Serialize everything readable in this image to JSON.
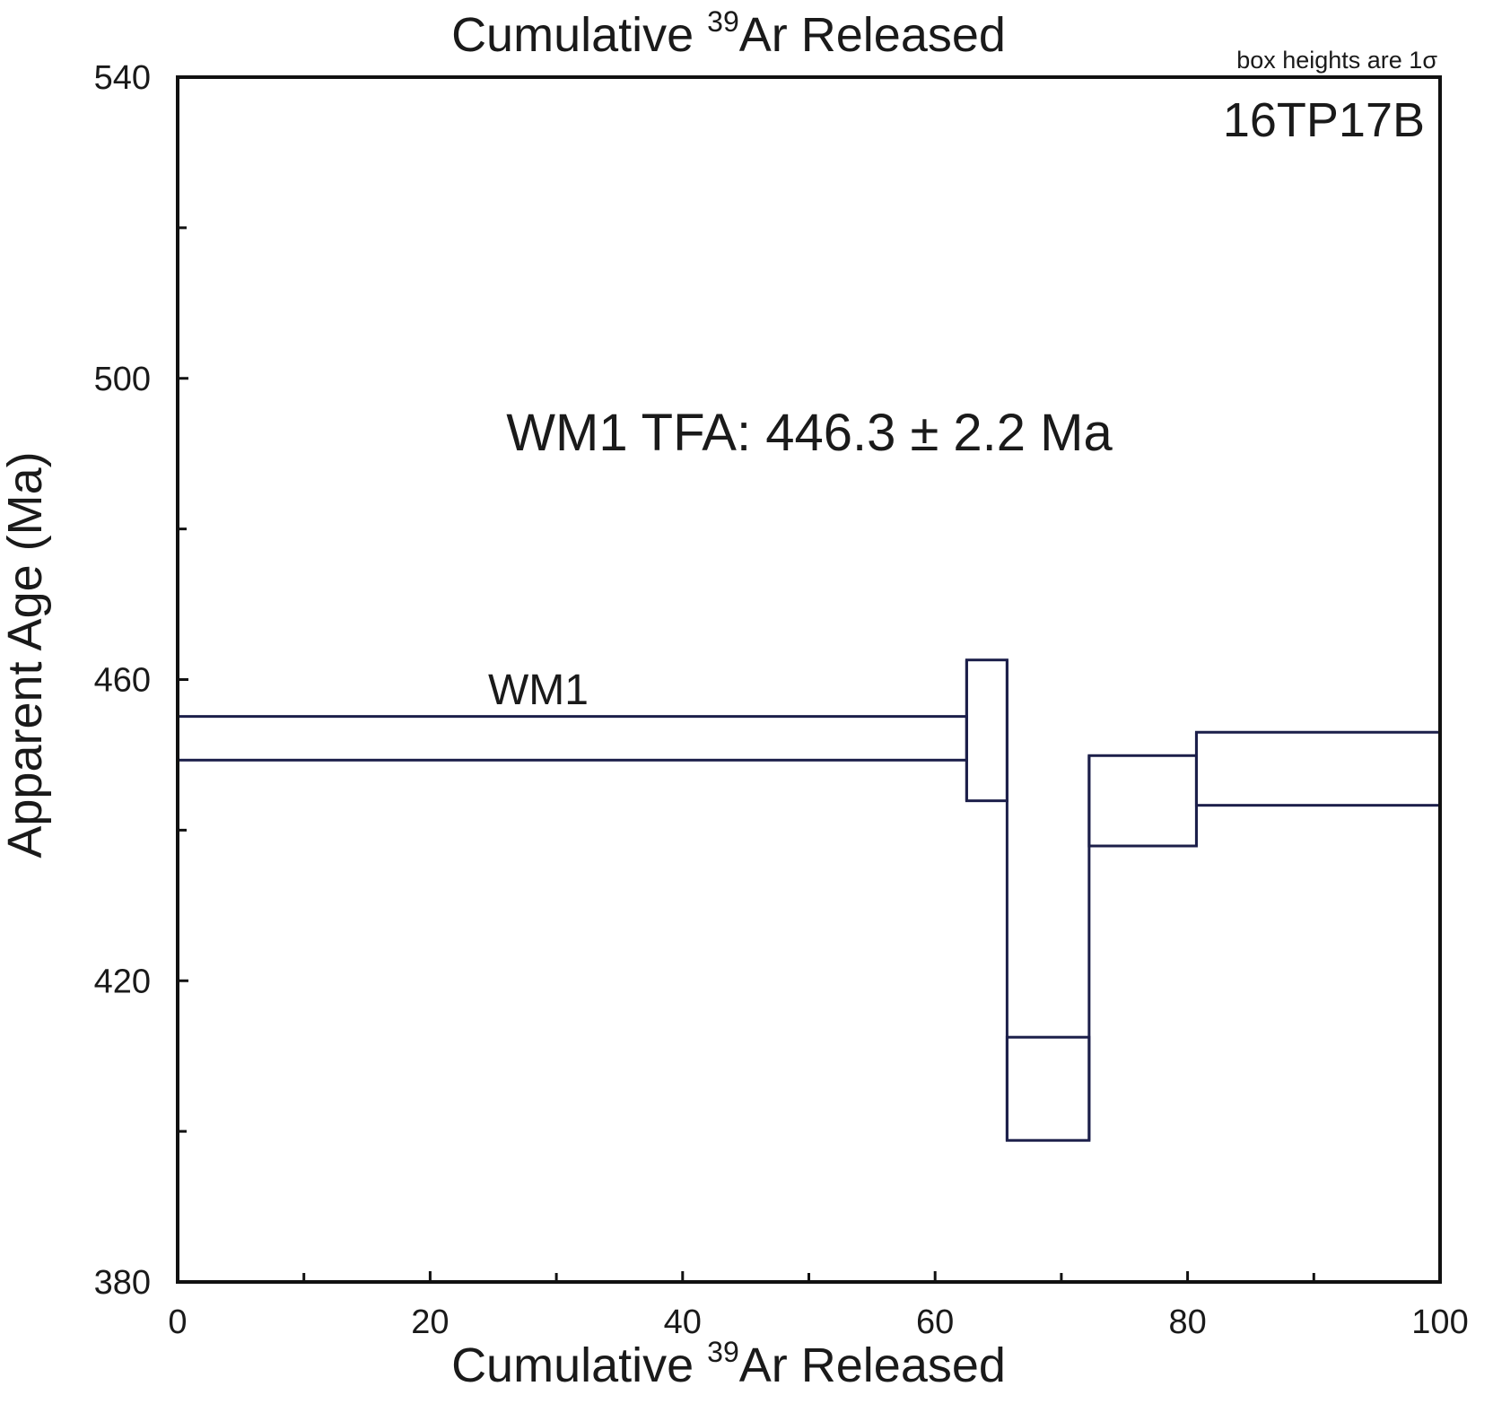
{
  "chart_data": {
    "type": "step-heating age spectrum",
    "title": [
      "Cumulative ",
      "39",
      "Ar Released"
    ],
    "xlabel": [
      "Cumulative ",
      "39",
      "Ar Released"
    ],
    "ylabel": "Apparent Age (Ma)",
    "note": "box heights are 1σ",
    "sample": "16TP17B",
    "annotation": "WM1 TFA: 446.3 ± 2.2 Ma",
    "segment_label": "WM1",
    "xlim": [
      0,
      100
    ],
    "ylim": [
      380,
      540
    ],
    "x_ticks": [
      0,
      20,
      40,
      60,
      80,
      100
    ],
    "x_minor_ticks": [
      10,
      30,
      50,
      70,
      90
    ],
    "y_ticks": [
      380,
      420,
      460,
      500,
      540
    ],
    "y_minor_ticks": [
      400,
      440,
      480,
      520
    ],
    "steps": [
      {
        "x_start": 0.0,
        "x_end": 62.5,
        "age_low": 449.3,
        "age_high": 455.1
      },
      {
        "x_start": 62.5,
        "x_end": 65.7,
        "age_low": 443.9,
        "age_high": 462.6
      },
      {
        "x_start": 65.7,
        "x_end": 72.2,
        "age_low": 398.8,
        "age_high": 412.5
      },
      {
        "x_start": 72.2,
        "x_end": 80.7,
        "age_low": 437.9,
        "age_high": 449.9
      },
      {
        "x_start": 80.7,
        "x_end": 100.0,
        "age_low": 443.3,
        "age_high": 453.0
      }
    ],
    "grid": false,
    "legend": "none",
    "line_color": "#1c1f4a"
  }
}
